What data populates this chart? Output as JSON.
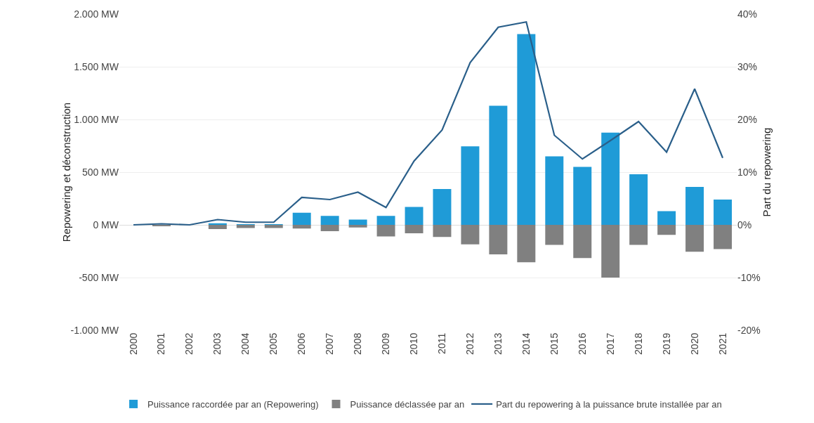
{
  "chart_data": {
    "type": "bar",
    "stacked": true,
    "ylabel": "Repowering et déconstruction",
    "y2label": "Part du repowering",
    "categories": [
      "2000",
      "2001",
      "2002",
      "2003",
      "2004",
      "2005",
      "2006",
      "2007",
      "2008",
      "2009",
      "2010",
      "2011",
      "2012",
      "2013",
      "2014",
      "2015",
      "2016",
      "2017",
      "2018",
      "2019",
      "2020",
      "2021"
    ],
    "series": [
      {
        "name": "Puissance raccordée par an (Repowering)",
        "color": "#1f9bd7",
        "values": [
          0,
          0,
          0,
          15,
          5,
          5,
          115,
          85,
          50,
          85,
          170,
          340,
          745,
          1130,
          1810,
          650,
          550,
          875,
          480,
          130,
          360,
          240
        ]
      },
      {
        "name": "Puissance déclassée par an",
        "color": "#808080",
        "values": [
          0,
          -10,
          0,
          -40,
          -30,
          -30,
          -35,
          -60,
          -25,
          -110,
          -80,
          -115,
          -185,
          -280,
          -355,
          -190,
          -315,
          -500,
          -190,
          -95,
          -255,
          -230
        ]
      },
      {
        "name": "Part du repowering à la puissance brute installée par an",
        "type": "line",
        "axis": "y2",
        "color": "#2a5f8a",
        "values": [
          0,
          0.2,
          0,
          1,
          0.5,
          0.5,
          5.2,
          4.8,
          6.2,
          3.3,
          12.1,
          18,
          30.8,
          37.5,
          38.5,
          17,
          12.5,
          16,
          19.6,
          13.8,
          25.8,
          12.7
        ]
      }
    ],
    "ylim": [
      -1000,
      2000
    ],
    "yticks": [
      {
        "value": -1000,
        "label": "-1.000 MW"
      },
      {
        "value": -500,
        "label": "-500 MW"
      },
      {
        "value": 0,
        "label": "0 MW"
      },
      {
        "value": 500,
        "label": "500 MW"
      },
      {
        "value": 1000,
        "label": "1.000 MW"
      },
      {
        "value": 1500,
        "label": "1.500 MW"
      },
      {
        "value": 2000,
        "label": "2.000 MW"
      }
    ],
    "y2lim": [
      -20,
      40
    ],
    "y2ticks": [
      {
        "value": -20,
        "label": "-20%"
      },
      {
        "value": -10,
        "label": "-10%"
      },
      {
        "value": 0,
        "label": "0%"
      },
      {
        "value": 10,
        "label": "10%"
      },
      {
        "value": 20,
        "label": "20%"
      },
      {
        "value": 30,
        "label": "30%"
      },
      {
        "value": 40,
        "label": "40%"
      }
    ],
    "grid": "y",
    "legend": "bottom",
    "marker": "none",
    "line_style": "solid"
  }
}
